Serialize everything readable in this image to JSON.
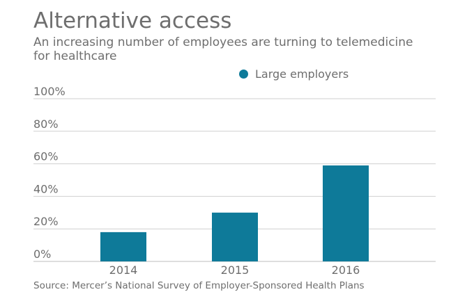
{
  "header": {
    "title": "Alternative access",
    "subtitle": "An increasing number of employees are turning to telemedicine for healthcare"
  },
  "legend": {
    "items": [
      {
        "label": "Large employers",
        "color": "#0e7a99"
      }
    ]
  },
  "footer": {
    "source": "Source: Mercer’s National Survey of Employer-Sponsored Health Plans"
  },
  "colors": {
    "bar": "#0e7a99",
    "grid": "#cfcfcf",
    "text": "#6e6e6e",
    "axis": "#bdbdbd"
  },
  "chart_data": {
    "type": "bar",
    "title": "Alternative access",
    "subtitle": "An increasing number of employees are turning to telemedicine for healthcare",
    "categories": [
      "2014",
      "2015",
      "2016"
    ],
    "series": [
      {
        "name": "Large employers",
        "values": [
          18,
          30,
          59
        ]
      }
    ],
    "xlabel": "",
    "ylabel": "",
    "ylim": [
      0,
      100
    ],
    "yticks": [
      0,
      20,
      40,
      60,
      80,
      100
    ],
    "ytick_labels": [
      "0%",
      "20%",
      "40%",
      "60%",
      "80%",
      "100%"
    ],
    "grid": true,
    "legend_position": "top-center"
  }
}
